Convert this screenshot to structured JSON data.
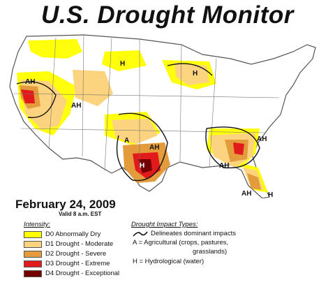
{
  "title": "U.S. Drought Monitor",
  "date": "February 24, 2009",
  "valid": "Valid 8 a.m. EST",
  "legend": {
    "intensity_heading": "Intensity:",
    "items": [
      {
        "label": "D0 Abnormally Dry",
        "color": "#ffff00"
      },
      {
        "label": "D1 Drought - Moderate",
        "color": "#fcd37f"
      },
      {
        "label": "D2 Drought - Severe",
        "color": "#e39b3b"
      },
      {
        "label": "D3 Drought - Extreme",
        "color": "#e31a1c"
      },
      {
        "label": "D4 Drought - Exceptional",
        "color": "#730000"
      }
    ]
  },
  "impacts": {
    "heading": "Drought Impact Types:",
    "line1": "Delineates dominant impacts",
    "line2": "A = Agricultural (crops, pastures,",
    "line3": "grasslands)",
    "line4": "H = Hydrological (water)"
  },
  "map_labels": {
    "nw_h": "H",
    "ca_ah": "AH",
    "west_ah": "AH",
    "mw_h": "H",
    "ks_a": "A",
    "tx_ah": "AH",
    "se_ah": "AH",
    "ga_ah": "AH",
    "fl_ah": "AH",
    "fl_h": "H",
    "tx_d4": "H"
  }
}
